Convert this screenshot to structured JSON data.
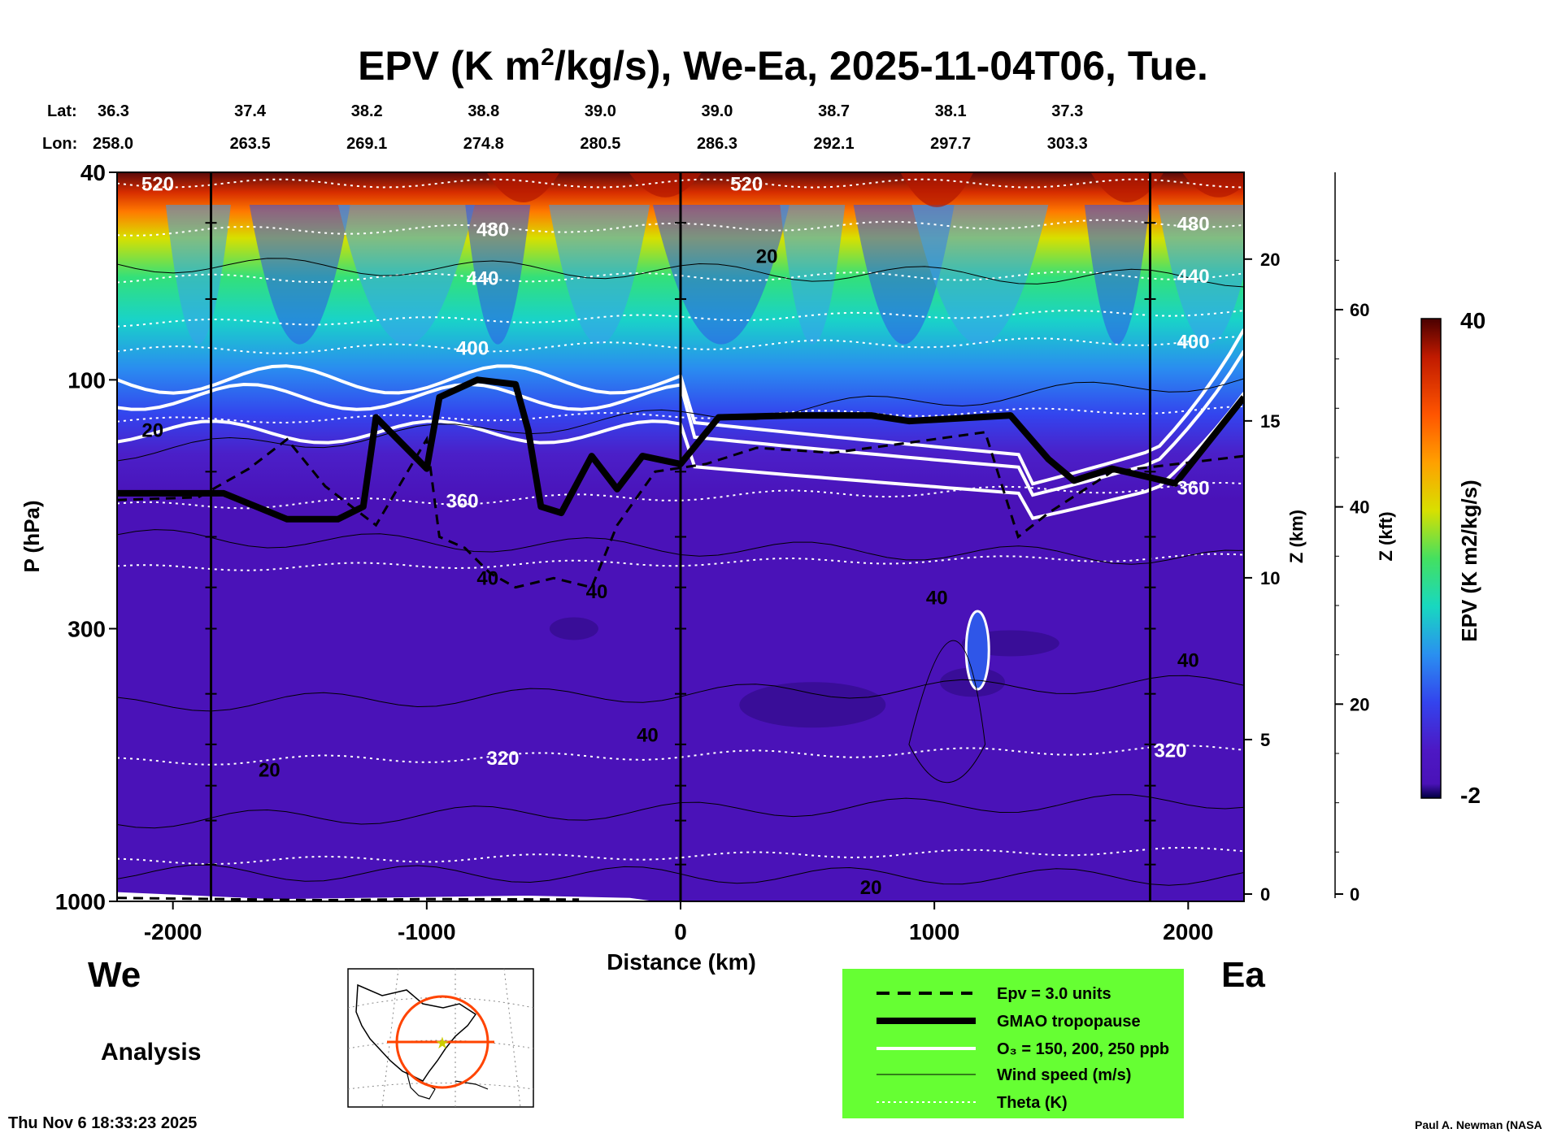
{
  "colors": {
    "background": "#ffffff",
    "panel_fill": "#4a12b8",
    "legend_fill": "#66ff33",
    "map_circle": "#ff4400",
    "map_star": "#cccc00"
  },
  "title": {
    "prefix": "EPV (K m",
    "sup": "2",
    "suffix": "/kg/s), We-Ea, 2025-11-04T06, Tue."
  },
  "header": {
    "lat_label": "Lat:",
    "lon_label": "Lon:",
    "lats": [
      "36.3",
      "37.4",
      "38.2",
      "38.8",
      "39.0",
      "39.0",
      "38.7",
      "38.1",
      "37.3"
    ],
    "lons": [
      "258.0",
      "263.5",
      "269.1",
      "274.8",
      "280.5",
      "286.3",
      "292.1",
      "297.7",
      "303.3"
    ]
  },
  "chart_data": {
    "type": "heatmap",
    "title": "EPV (K m2/kg/s), We-Ea, 2025-11-04T06, Tue.",
    "xlabel": "Distance (km)",
    "ylabel": "P (hPa)",
    "xlim": [
      -2220,
      2220
    ],
    "x_ticks": [
      -2000,
      -1000,
      0,
      1000,
      2000
    ],
    "x_tick_labels": [
      "-2000",
      "-1000",
      "0",
      "1000",
      "2000"
    ],
    "ylim_hPa": [
      1000,
      40
    ],
    "y_scale": "log",
    "y_ticks": [
      40,
      100,
      300,
      1000
    ],
    "y_tick_labels": [
      "40",
      "100",
      "300",
      "1000"
    ],
    "section_markers_km": [
      -1850,
      0,
      1850
    ],
    "right_axis_km": {
      "label": "Z (km)",
      "ticks": [
        0,
        5,
        10,
        15,
        20
      ],
      "tick_labels": [
        "0",
        "5",
        "10",
        "15",
        "20"
      ]
    },
    "right_axis_kft": {
      "label": "Z (kft)",
      "ticks": [
        0,
        20,
        40,
        60
      ],
      "tick_labels": [
        "0",
        "20",
        "40",
        "60"
      ]
    },
    "colorbar": {
      "label": "EPV (K m2/kg/s)",
      "min": -2,
      "max": 40,
      "min_label": "-2",
      "max_label": "40"
    },
    "theta_contours_K": [
      {
        "value": 520,
        "label": "520",
        "p_left": 42,
        "p_right": 42
      },
      {
        "value": 480,
        "label": "480",
        "p_left": 52,
        "p_right": 50
      },
      {
        "value": 440,
        "label": "440",
        "p_left": 64,
        "p_right": 63
      },
      {
        "value": 400,
        "label": "400",
        "p_left": 88,
        "p_right": 84
      },
      {
        "value": 360,
        "label": "360",
        "p_left": 175,
        "p_right": 160
      },
      {
        "value": 320,
        "label": "320",
        "p_left": 540,
        "p_right": 510
      }
    ],
    "theta_unlabeled_p_left": [
      78,
      120,
      230,
      840
    ],
    "tropopause_hPa": [
      [
        -2220,
        165
      ],
      [
        -1800,
        165
      ],
      [
        -1550,
        185
      ],
      [
        -1350,
        185
      ],
      [
        -1250,
        175
      ],
      [
        -1200,
        118
      ],
      [
        -1000,
        148
      ],
      [
        -950,
        108
      ],
      [
        -800,
        100
      ],
      [
        -650,
        102
      ],
      [
        -600,
        125
      ],
      [
        -550,
        175
      ],
      [
        -470,
        180
      ],
      [
        -350,
        140
      ],
      [
        -250,
        162
      ],
      [
        -150,
        140
      ],
      [
        0,
        145
      ],
      [
        150,
        118
      ],
      [
        450,
        117
      ],
      [
        750,
        117
      ],
      [
        900,
        120
      ],
      [
        1300,
        117
      ],
      [
        1450,
        142
      ],
      [
        1550,
        156
      ],
      [
        1700,
        148
      ],
      [
        1950,
        158
      ],
      [
        2220,
        108
      ]
    ],
    "wind_speed_labels_ms": [
      {
        "label": "20",
        "x_km": 340,
        "p_hPa": 58
      },
      {
        "label": "20",
        "x_km": -2080,
        "p_hPa": 125
      },
      {
        "label": "40",
        "x_km": -760,
        "p_hPa": 240
      },
      {
        "label": "40",
        "x_km": -330,
        "p_hPa": 255
      },
      {
        "label": "40",
        "x_km": 1010,
        "p_hPa": 262
      },
      {
        "label": "40",
        "x_km": 2000,
        "p_hPa": 345
      },
      {
        "label": "40",
        "x_km": -130,
        "p_hPa": 480
      },
      {
        "label": "20",
        "x_km": -1620,
        "p_hPa": 560
      },
      {
        "label": "20",
        "x_km": 750,
        "p_hPa": 940
      }
    ]
  },
  "labels": {
    "left_station": "We",
    "right_station": "Ea",
    "analysis": "Analysis",
    "timestamp": "Thu Nov  6 18:33:23 2025",
    "credit": "Paul A. Newman (NASA"
  },
  "legend": {
    "epv_line": "Epv = 3.0 units",
    "tropopause": "GMAO tropopause",
    "ozone": "O₃ = 150, 200, 250 ppb",
    "wind": "Wind speed (m/s)",
    "theta": "Theta (K)"
  }
}
